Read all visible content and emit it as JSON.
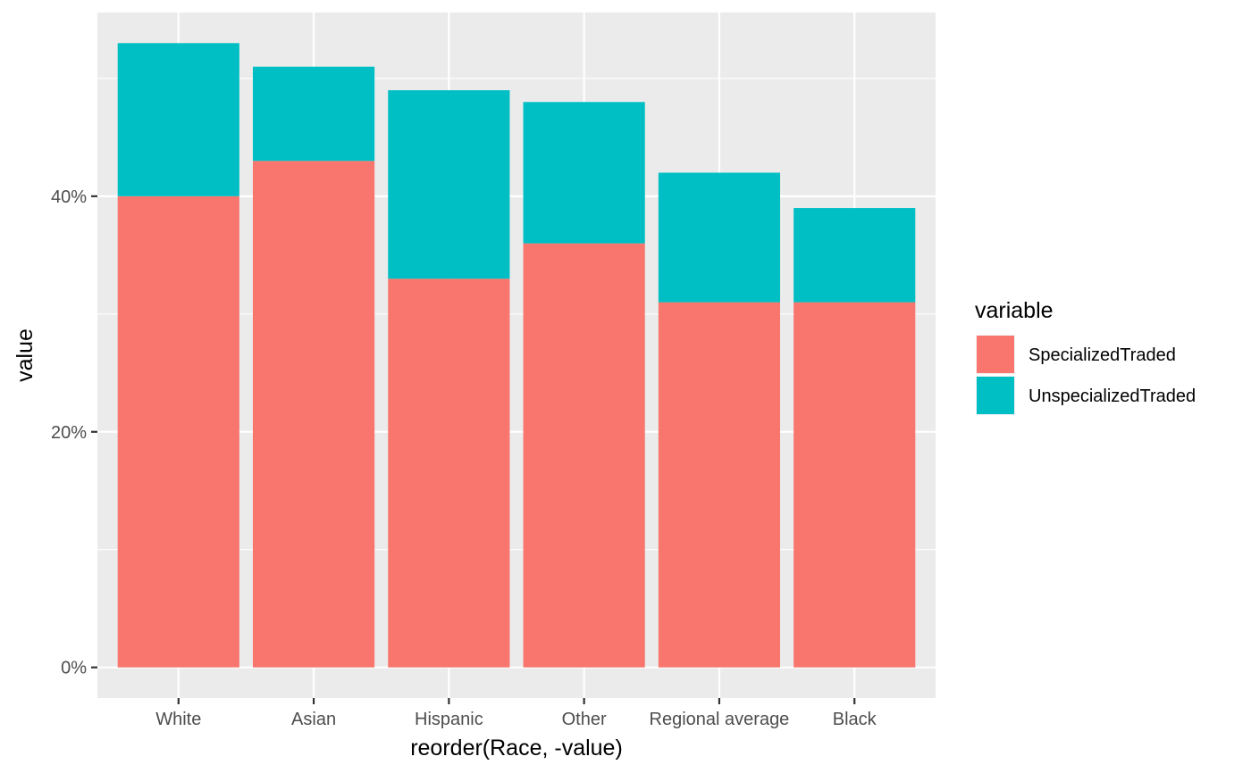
{
  "chart_data": {
    "type": "bar",
    "stacked": true,
    "categories": [
      "White",
      "Asian",
      "Hispanic",
      "Other",
      "Regional average",
      "Black"
    ],
    "series": [
      {
        "name": "SpecializedTraded",
        "values": [
          40,
          43,
          33,
          36,
          31,
          31
        ],
        "color": "#F8766D"
      },
      {
        "name": "UnspecializedTraded",
        "values": [
          13,
          8,
          16,
          12,
          11,
          8
        ],
        "color": "#00BFC4"
      }
    ],
    "xlabel": "reorder(Race, -value)",
    "ylabel": "value",
    "ylim": [
      -2.6,
      55.6
    ],
    "y_ticks": [
      0,
      20,
      40
    ],
    "y_tick_labels": [
      "0%",
      "20%",
      "40%"
    ],
    "y_minor_ticks": [
      10,
      30,
      50
    ],
    "grid": true,
    "panel_background": "#EBEBEB",
    "grid_color": "#FFFFFF",
    "legend": {
      "title": "variable",
      "position": "right",
      "items": [
        "SpecializedTraded",
        "UnspecializedTraded"
      ]
    }
  }
}
